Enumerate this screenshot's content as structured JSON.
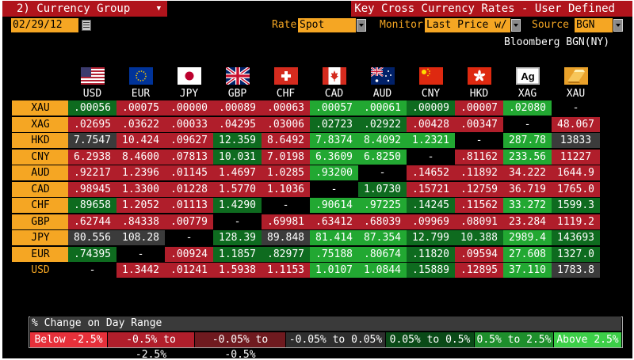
{
  "header": {
    "group_label": "2) Currency Group",
    "title": "Key Cross Currency Rates - User Defined",
    "date": "02/29/12",
    "rate_label": "Rate",
    "rate_value": "Spot",
    "monitor_label": "Monitor",
    "monitor_value": "Last Price w/",
    "source_label": "Source",
    "source_value": "BGN",
    "source_name": "Bloomberg BGN(NY)"
  },
  "columns": [
    {
      "code": "USD",
      "flag": "us-flag-icon"
    },
    {
      "code": "EUR",
      "flag": "eu-flag-icon"
    },
    {
      "code": "JPY",
      "flag": "jp-flag-icon"
    },
    {
      "code": "GBP",
      "flag": "gb-flag-icon"
    },
    {
      "code": "CHF",
      "flag": "ch-flag-icon"
    },
    {
      "code": "CAD",
      "flag": "ca-flag-icon"
    },
    {
      "code": "AUD",
      "flag": "au-flag-icon"
    },
    {
      "code": "CNY",
      "flag": "cn-flag-icon"
    },
    {
      "code": "HKD",
      "flag": "hk-flag-icon"
    },
    {
      "code": "XAG",
      "flag": "ag-icon"
    },
    {
      "code": "XAU",
      "flag": "au-gold-icon"
    }
  ],
  "rows": [
    {
      "label": "XAU",
      "cells": [
        [
          ".00056",
          "g"
        ],
        [
          ".00075",
          "r"
        ],
        [
          ".00000",
          "r"
        ],
        [
          ".00089",
          "r"
        ],
        [
          ".00063",
          "r"
        ],
        [
          ".00057",
          "G"
        ],
        [
          ".00061",
          "G"
        ],
        [
          ".00009",
          "g"
        ],
        [
          ".00007",
          "r"
        ],
        [
          ".02080",
          "G"
        ],
        [
          "-",
          "k"
        ]
      ]
    },
    {
      "label": "XAG",
      "cells": [
        [
          ".02695",
          "r"
        ],
        [
          ".03622",
          "r"
        ],
        [
          ".00033",
          "r"
        ],
        [
          ".04295",
          "r"
        ],
        [
          ".03006",
          "r"
        ],
        [
          ".02723",
          "g"
        ],
        [
          ".02922",
          "g"
        ],
        [
          ".00428",
          "r"
        ],
        [
          ".00347",
          "r"
        ],
        [
          "-",
          "k"
        ],
        [
          "48.067",
          "r"
        ]
      ]
    },
    {
      "label": "HKD",
      "cells": [
        [
          "7.7547",
          "d"
        ],
        [
          "10.424",
          "r"
        ],
        [
          ".09627",
          "r"
        ],
        [
          "12.359",
          "g"
        ],
        [
          "8.6492",
          "r"
        ],
        [
          "7.8374",
          "G"
        ],
        [
          "8.4092",
          "G"
        ],
        [
          "1.2321",
          "G"
        ],
        [
          "-",
          "k"
        ],
        [
          "287.78",
          "G"
        ],
        [
          "13833",
          "d"
        ]
      ]
    },
    {
      "label": "CNY",
      "cells": [
        [
          "6.2938",
          "r"
        ],
        [
          "8.4600",
          "r"
        ],
        [
          ".07813",
          "r"
        ],
        [
          "10.031",
          "g"
        ],
        [
          "7.0198",
          "r"
        ],
        [
          "6.3609",
          "G"
        ],
        [
          "6.8250",
          "G"
        ],
        [
          "-",
          "k"
        ],
        [
          ".81162",
          "r"
        ],
        [
          "233.56",
          "G"
        ],
        [
          "11227",
          "r"
        ]
      ]
    },
    {
      "label": "AUD",
      "cells": [
        [
          ".92217",
          "r"
        ],
        [
          "1.2396",
          "r"
        ],
        [
          ".01145",
          "r"
        ],
        [
          "1.4697",
          "r"
        ],
        [
          "1.0285",
          "r"
        ],
        [
          ".93200",
          "G"
        ],
        [
          "-",
          "k"
        ],
        [
          ".14652",
          "r"
        ],
        [
          ".11892",
          "r"
        ],
        [
          "34.222",
          "r"
        ],
        [
          "1644.9",
          "r"
        ]
      ]
    },
    {
      "label": "CAD",
      "cells": [
        [
          ".98945",
          "r"
        ],
        [
          "1.3300",
          "r"
        ],
        [
          ".01228",
          "r"
        ],
        [
          "1.5770",
          "r"
        ],
        [
          "1.1036",
          "r"
        ],
        [
          "-",
          "k"
        ],
        [
          "1.0730",
          "g"
        ],
        [
          ".15721",
          "r"
        ],
        [
          ".12759",
          "r"
        ],
        [
          "36.719",
          "r"
        ],
        [
          "1765.0",
          "r"
        ]
      ]
    },
    {
      "label": "CHF",
      "cells": [
        [
          ".89658",
          "g"
        ],
        [
          "1.2052",
          "r"
        ],
        [
          ".01113",
          "r"
        ],
        [
          "1.4290",
          "g"
        ],
        [
          "-",
          "k"
        ],
        [
          ".90614",
          "G"
        ],
        [
          ".97225",
          "G"
        ],
        [
          ".14245",
          "g"
        ],
        [
          ".11562",
          "r"
        ],
        [
          "33.272",
          "G"
        ],
        [
          "1599.3",
          "g"
        ]
      ]
    },
    {
      "label": "GBP",
      "cells": [
        [
          ".62744",
          "r"
        ],
        [
          ".84338",
          "r"
        ],
        [
          ".00779",
          "r"
        ],
        [
          "-",
          "k"
        ],
        [
          ".69981",
          "r"
        ],
        [
          ".63412",
          "r"
        ],
        [
          ".68039",
          "r"
        ],
        [
          ".09969",
          "r"
        ],
        [
          ".08091",
          "r"
        ],
        [
          "23.284",
          "r"
        ],
        [
          "1119.2",
          "r"
        ]
      ]
    },
    {
      "label": "JPY",
      "cells": [
        [
          "80.556",
          "d"
        ],
        [
          "108.28",
          "d"
        ],
        [
          "-",
          "k"
        ],
        [
          "128.39",
          "g"
        ],
        [
          "89.848",
          "d"
        ],
        [
          "81.414",
          "G"
        ],
        [
          "87.354",
          "G"
        ],
        [
          "12.799",
          "g"
        ],
        [
          "10.388",
          "g"
        ],
        [
          "2989.4",
          "G"
        ],
        [
          "143693",
          "g"
        ]
      ]
    },
    {
      "label": "EUR",
      "cells": [
        [
          ".74395",
          "g"
        ],
        [
          "-",
          "k"
        ],
        [
          ".00924",
          "r"
        ],
        [
          "1.1857",
          "g"
        ],
        [
          ".82977",
          "g"
        ],
        [
          ".75188",
          "G"
        ],
        [
          ".80674",
          "G"
        ],
        [
          ".11820",
          "g"
        ],
        [
          ".09594",
          "r"
        ],
        [
          "27.608",
          "G"
        ],
        [
          "1327.0",
          "g"
        ]
      ]
    },
    {
      "label": "USD",
      "cells": [
        [
          "-",
          "k"
        ],
        [
          "1.3442",
          "r"
        ],
        [
          ".01241",
          "r"
        ],
        [
          "1.5938",
          "r"
        ],
        [
          "1.1153",
          "r"
        ],
        [
          "1.0107",
          "G"
        ],
        [
          "1.0844",
          "G"
        ],
        [
          ".15889",
          "g"
        ],
        [
          ".12895",
          "r"
        ],
        [
          "37.110",
          "G"
        ],
        [
          "1783.8",
          "d"
        ]
      ]
    }
  ],
  "colors": {
    "r": "#b01e2b",
    "d": "#3b3b3b",
    "g": "#0e6b1f",
    "G": "#22a832",
    "k": "#000000",
    "accent": "#f5a623",
    "title_red": "#b0141c"
  },
  "legend": {
    "title": "% Change on Day Range",
    "items": [
      {
        "label": "Below -2.5%",
        "color": "#e6303a"
      },
      {
        "label": "-0.5% to -2.5%",
        "color": "#b01e2b"
      },
      {
        "label": "-0.05% to -0.5%",
        "color": "#6f1a1f"
      },
      {
        "label": "-0.05% to 0.05%",
        "color": "#2e2e2e"
      },
      {
        "label": "0.05% to 0.5%",
        "color": "#0a4a17"
      },
      {
        "label": "0.5% to 2.5%",
        "color": "#1e8f2c"
      },
      {
        "label": "Above 2.5%",
        "color": "#3ccf48"
      }
    ]
  }
}
